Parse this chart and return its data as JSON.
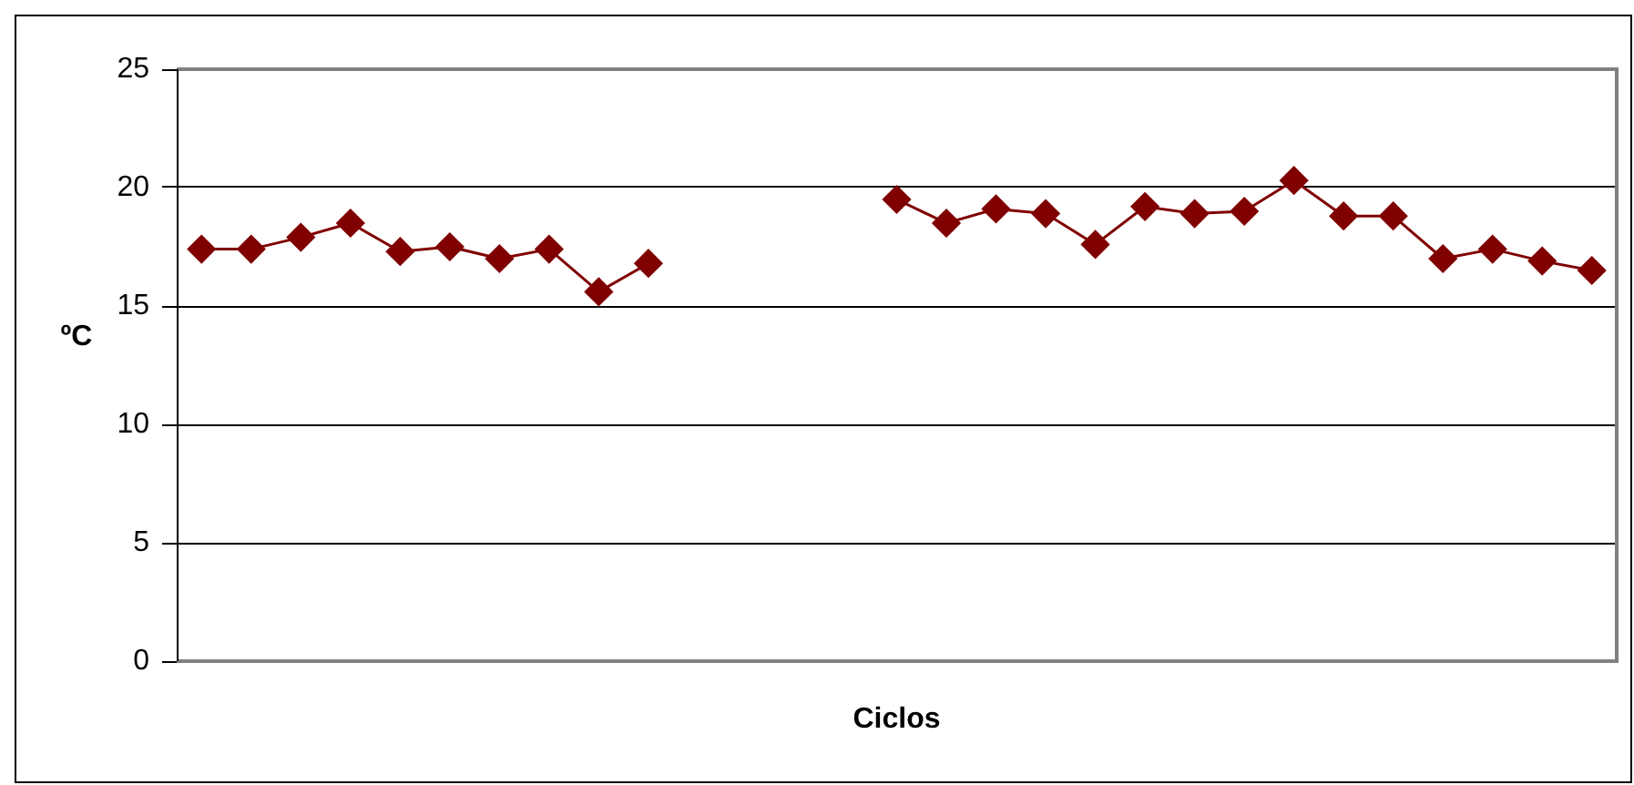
{
  "chart_data": {
    "type": "line",
    "xlabel": "Ciclos",
    "ylabel": "ºC",
    "categories": [
      null,
      null,
      null,
      null,
      null,
      null,
      null,
      null,
      null,
      null,
      null,
      null,
      null,
      null,
      null,
      null,
      null,
      null,
      null,
      null,
      null,
      null,
      null,
      null,
      null,
      null,
      null,
      null,
      null
    ],
    "series": [
      {
        "color": "#800000",
        "values": [
          17.4,
          17.4,
          17.9,
          18.5,
          17.3,
          17.5,
          17.0,
          17.4,
          15.6,
          16.8,
          null,
          null,
          null,
          null,
          19.5,
          18.5,
          19.1,
          18.9,
          17.6,
          19.2,
          18.9,
          19.0,
          20.3,
          18.8,
          18.8,
          17.0,
          17.4,
          16.9,
          16.5
        ]
      }
    ],
    "ylim": [
      0,
      25
    ],
    "yticks": [
      0,
      5,
      10,
      15,
      20,
      25
    ],
    "grid": "y",
    "legend": false,
    "tick_labels": "y",
    "marker": "diamond",
    "line_style": "solid"
  }
}
